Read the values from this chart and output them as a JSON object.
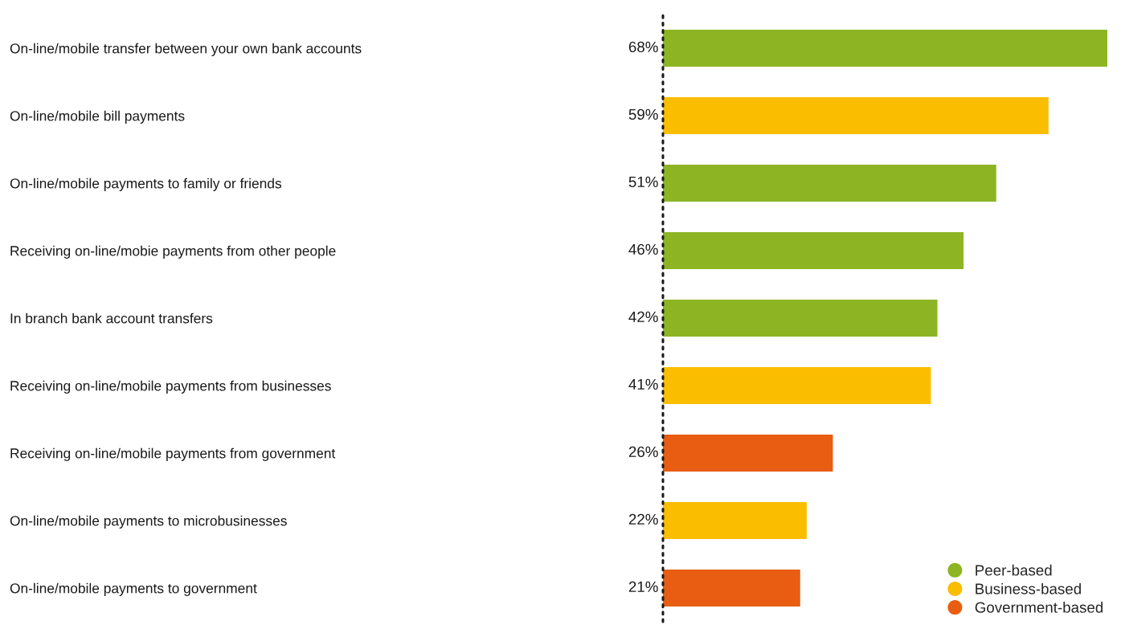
{
  "chart_data": {
    "type": "bar",
    "orientation": "horizontal",
    "categories": [
      "On-line/mobile transfer between your own bank accounts",
      "On-line/mobile bill payments",
      "On-line/mobile payments to family or friends",
      "Receiving on-line/mobie payments from other people",
      "In branch bank account transfers",
      "Receiving on-line/mobile payments from businesses",
      "Receiving on-line/mobile payments from government",
      "On-line/mobile payments to microbusinesses",
      "On-line/mobile payments to government"
    ],
    "series": [
      {
        "name": "Peer-based",
        "color": "#8db523",
        "values": [
          68,
          null,
          51,
          46,
          42,
          null,
          null,
          null,
          null
        ],
        "value_labels": [
          "68%",
          null,
          "51%",
          "46%",
          "42%",
          null,
          null,
          null,
          null
        ]
      },
      {
        "name": "Business-based",
        "color": "#fbbd00",
        "values": [
          null,
          59,
          null,
          null,
          null,
          41,
          null,
          22,
          null
        ],
        "value_labels": [
          null,
          "59%",
          null,
          null,
          null,
          "41%",
          null,
          "22%",
          null
        ]
      },
      {
        "name": "Government-based",
        "color": "#e85d12",
        "values": [
          null,
          null,
          null,
          null,
          null,
          null,
          26,
          null,
          21
        ],
        "value_labels": [
          null,
          null,
          null,
          null,
          null,
          null,
          "26%",
          null,
          "21%"
        ]
      }
    ],
    "xlim": [
      0,
      68
    ],
    "tick_labels": "y",
    "grid": false,
    "legend": "bottom right"
  }
}
